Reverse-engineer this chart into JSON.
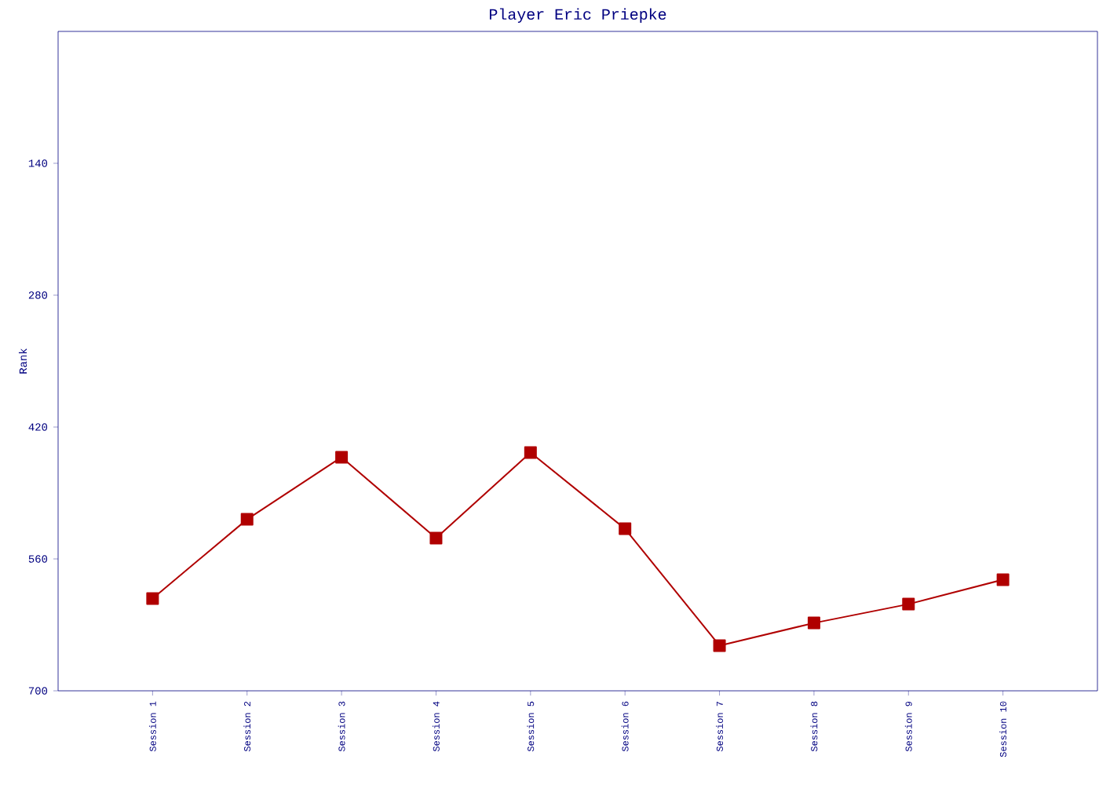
{
  "chart_data": {
    "type": "line",
    "title": "Player Eric Priepke",
    "ylabel": "Rank",
    "categories": [
      "Session 1",
      "Session 2",
      "Session 3",
      "Session 4",
      "Session 5",
      "Session 6",
      "Session 7",
      "Session 8",
      "Session 9",
      "Session 10"
    ],
    "series": [
      {
        "color": "#b00000",
        "values": [
          602,
          518,
          452,
          538,
          447,
          528,
          652,
          628,
          608,
          582
        ]
      }
    ],
    "ylim": [
      700,
      0
    ],
    "yticks": [
      140,
      280,
      420,
      560,
      700
    ],
    "grid": false,
    "marker": "square",
    "line_style": "solid"
  }
}
